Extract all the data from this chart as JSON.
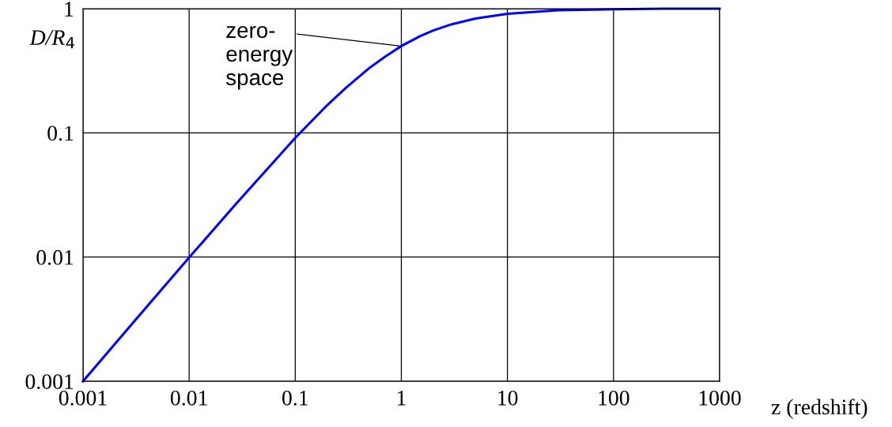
{
  "chart_data": {
    "type": "line",
    "xlabel": "z (redshift)",
    "ylabel": "D/R$_{4}$",
    "x": [
      0.001,
      0.003,
      0.01,
      0.03,
      0.1,
      0.2,
      0.3,
      0.5,
      0.7,
      1,
      1.5,
      2,
      3,
      5,
      10,
      30,
      100,
      300,
      1000
    ],
    "series": [
      {
        "color": "#0000ff",
        "values": [
          0.001,
          0.003,
          0.0099,
          0.029,
          0.091,
          0.167,
          0.23,
          0.333,
          0.41,
          0.5,
          0.6,
          0.667,
          0.75,
          0.833,
          0.91,
          0.97,
          0.99,
          1,
          1
        ]
      }
    ],
    "annotations": [
      {
        "text": "zero-\nenergy\nspace",
        "x": 1,
        "y": 0.5
      }
    ],
    "log": "xy",
    "xlim": [
      0.001,
      1000
    ],
    "ylim": [
      0.001,
      1
    ],
    "xticks": [
      0.001,
      0.01,
      0.1,
      1,
      10,
      100,
      1000
    ],
    "yticks": [
      0.001,
      0.01,
      0.1,
      1
    ],
    "grid": true,
    "line_style": "solid",
    "marker": "none"
  }
}
